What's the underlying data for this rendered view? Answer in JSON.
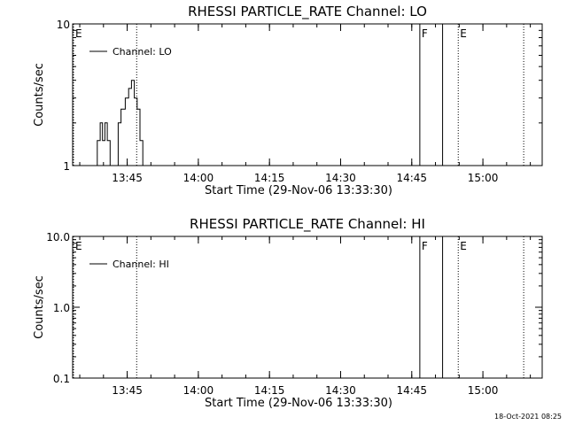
{
  "footer_timestamp": "18-Oct-2021 08:25",
  "chart_data": [
    {
      "type": "line",
      "title": "RHESSI PARTICLE_RATE Channel: LO",
      "xlabel": "Start Time (29-Nov-06 13:33:30)",
      "ylabel": "Counts/sec",
      "yscale": "log",
      "ylim": [
        1,
        10
      ],
      "y_tick_labels": [
        "1",
        "10"
      ],
      "y_ticks": [
        1,
        10
      ],
      "x_unit": "minutes after 13:33:30",
      "xlim": [
        0,
        99
      ],
      "x_ticks": [
        11.5,
        26.5,
        41.5,
        56.5,
        71.5,
        86.5
      ],
      "x_tick_labels": [
        "13:45",
        "14:00",
        "14:15",
        "14:30",
        "14:45",
        "15:00"
      ],
      "legend": {
        "label": "Channel: LO",
        "position": "top-left"
      },
      "series": [
        {
          "name": "Channel: LO",
          "x": [
            5.2,
            5.2,
            5.8,
            5.8,
            6.3,
            6.3,
            6.8,
            6.8,
            7.3,
            7.3,
            7.9,
            7.9,
            9.6,
            9.6,
            10.2,
            10.2,
            11.1,
            11.1,
            11.8,
            11.8,
            12.4,
            12.4,
            13.0,
            13.0,
            13.6,
            13.6,
            14.2,
            14.2,
            14.8,
            14.8
          ],
          "y": [
            1.0,
            1.5,
            1.5,
            2.0,
            2.0,
            1.5,
            1.5,
            2.0,
            2.0,
            1.5,
            1.5,
            1.0,
            1.0,
            2.0,
            2.0,
            2.5,
            2.5,
            3.0,
            3.0,
            3.5,
            3.5,
            4.0,
            4.0,
            3.0,
            3.0,
            2.5,
            2.5,
            1.5,
            1.5,
            1.0
          ]
        }
      ],
      "markers": [
        {
          "label": "E",
          "x": 0,
          "style": "dotted"
        },
        {
          "label": "",
          "x": 13.5,
          "style": "dotted"
        },
        {
          "label": "F",
          "x": 73.2,
          "style": "solid"
        },
        {
          "label": "",
          "x": 78.0,
          "style": "solid"
        },
        {
          "label": "E",
          "x": 81.3,
          "style": "dotted"
        },
        {
          "label": "",
          "x": 95.1,
          "style": "dotted"
        }
      ]
    },
    {
      "type": "line",
      "title": "RHESSI PARTICLE_RATE Channel: HI",
      "xlabel": "Start Time (29-Nov-06 13:33:30)",
      "ylabel": "Counts/sec",
      "yscale": "log",
      "ylim": [
        0.1,
        10
      ],
      "y_tick_labels": [
        "0.1",
        "1.0",
        "10.0"
      ],
      "y_ticks": [
        0.1,
        1,
        10
      ],
      "x_unit": "minutes after 13:33:30",
      "xlim": [
        0,
        99
      ],
      "x_ticks": [
        11.5,
        26.5,
        41.5,
        56.5,
        71.5,
        86.5
      ],
      "x_tick_labels": [
        "13:45",
        "14:00",
        "14:15",
        "14:30",
        "14:45",
        "15:00"
      ],
      "legend": {
        "label": "Channel: HI",
        "position": "top-left"
      },
      "series": [
        {
          "name": "Channel: HI",
          "x": [],
          "y": []
        }
      ],
      "markers": [
        {
          "label": "E",
          "x": 0,
          "style": "dotted"
        },
        {
          "label": "",
          "x": 13.5,
          "style": "dotted"
        },
        {
          "label": "F",
          "x": 73.2,
          "style": "solid"
        },
        {
          "label": "",
          "x": 78.0,
          "style": "solid"
        },
        {
          "label": "E",
          "x": 81.3,
          "style": "dotted"
        },
        {
          "label": "",
          "x": 95.1,
          "style": "dotted"
        }
      ]
    }
  ]
}
